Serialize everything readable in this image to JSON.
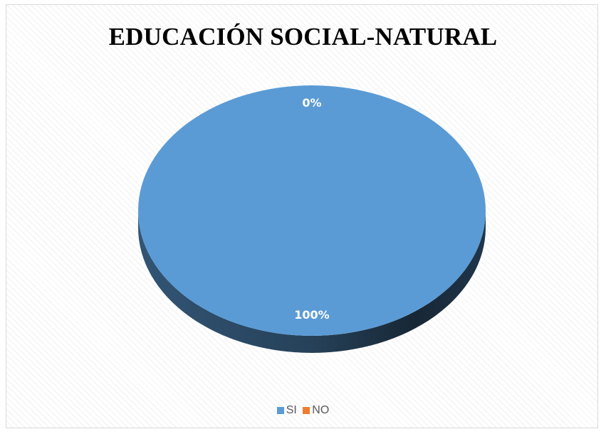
{
  "chart_data": {
    "type": "pie",
    "title": "EDUCACIÓN SOCIAL-NATURAL",
    "categories": [
      "SI",
      "NO"
    ],
    "values": [
      100,
      0
    ],
    "data_labels": [
      "100%",
      "0%"
    ],
    "colors": [
      "#5b9bd5",
      "#ed7d31"
    ],
    "legend_position": "bottom",
    "style": "3d"
  }
}
